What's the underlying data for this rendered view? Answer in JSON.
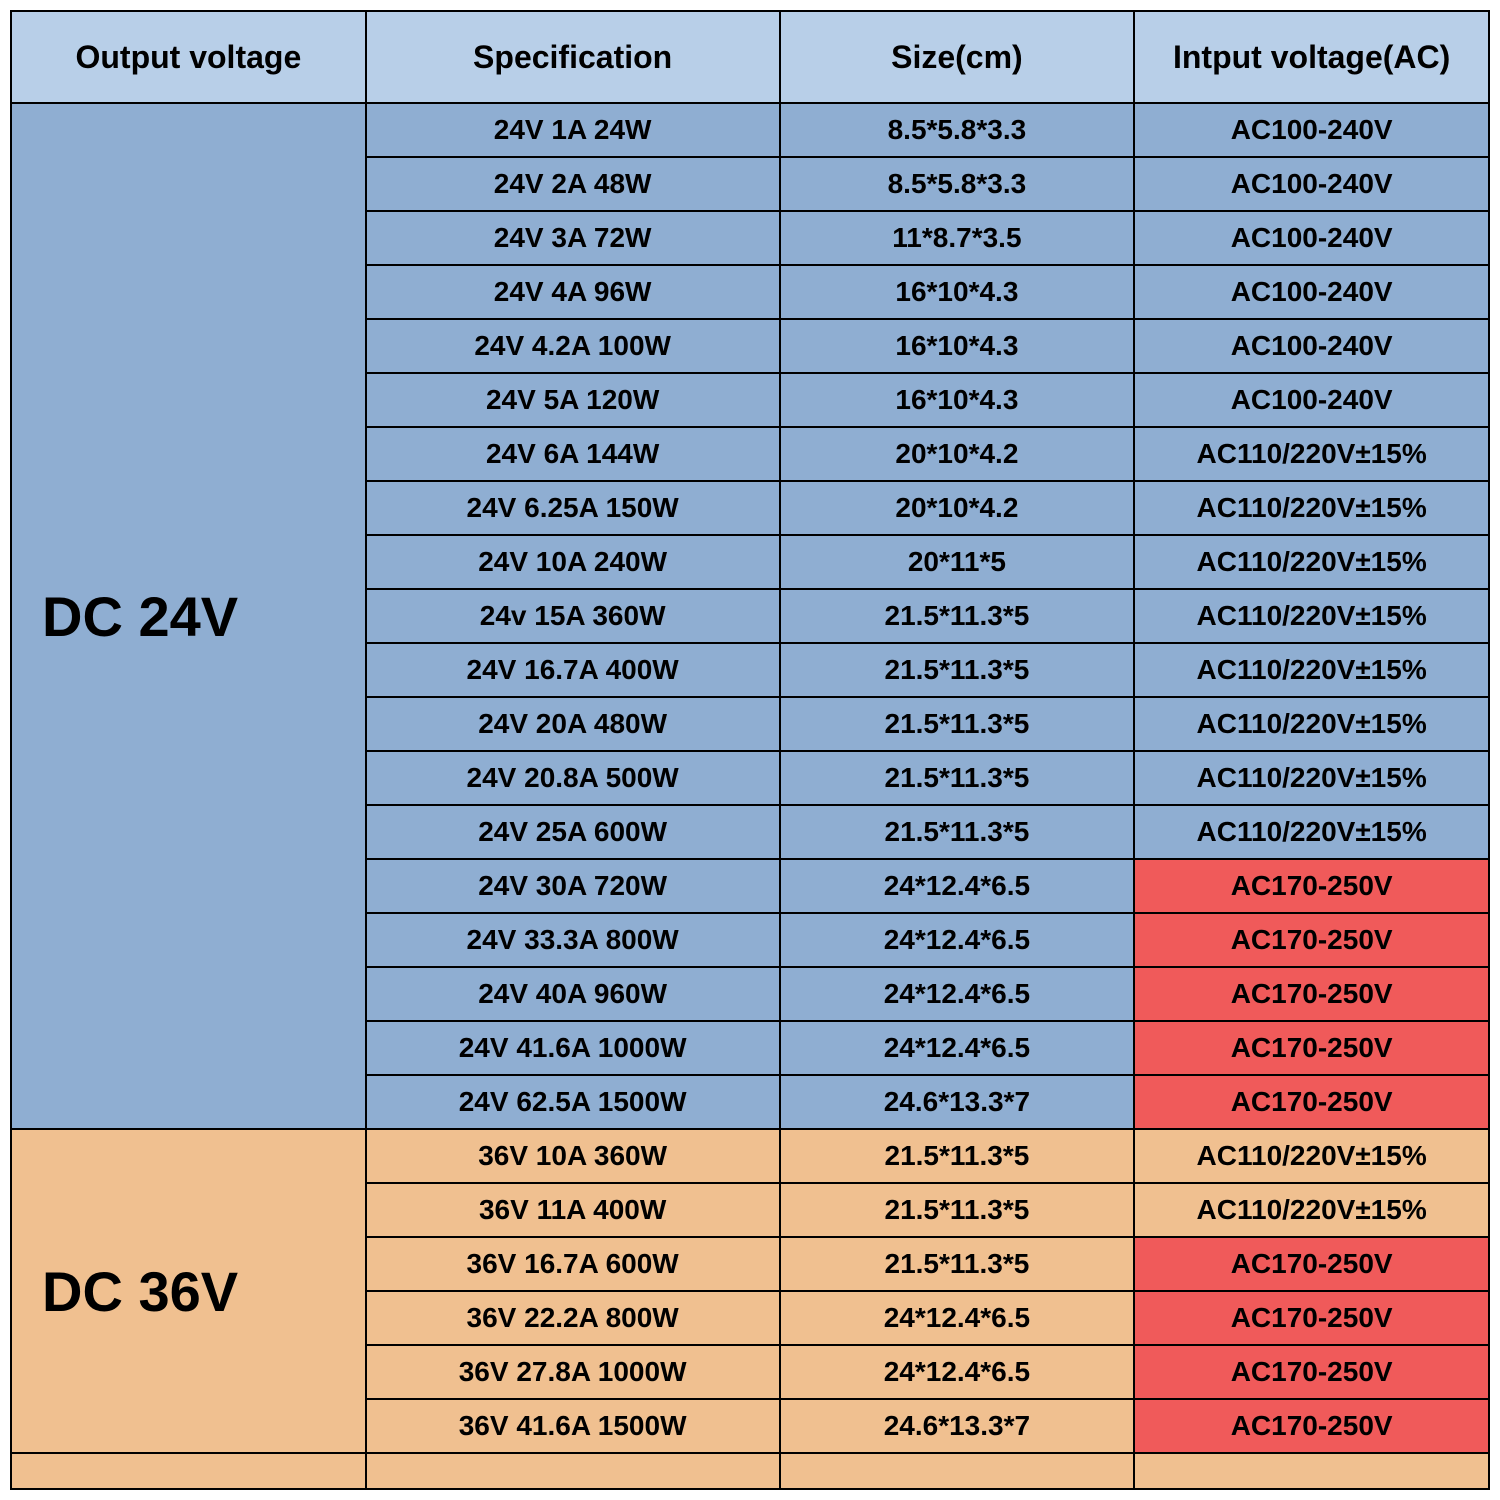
{
  "columns": [
    "Output voltage",
    "Specification",
    "Size(cm)",
    "Intput voltage(AC)"
  ],
  "column_widths_pct": [
    24,
    28,
    24,
    24
  ],
  "header_bg": "#b8cfe8",
  "border_color": "#000000",
  "header_fontsize": 32,
  "body_fontsize": 28,
  "group_fontsize": 56,
  "groups": [
    {
      "label": "DC 24V",
      "group_bg": "#8faed2",
      "rows": [
        {
          "spec": "24V 1A 24W",
          "size": "8.5*5.8*3.3",
          "input": "AC100-240V",
          "input_bg": "#8faed2"
        },
        {
          "spec": "24V 2A 48W",
          "size": "8.5*5.8*3.3",
          "input": "AC100-240V",
          "input_bg": "#8faed2"
        },
        {
          "spec": "24V 3A 72W",
          "size": "11*8.7*3.5",
          "input": "AC100-240V",
          "input_bg": "#8faed2"
        },
        {
          "spec": "24V 4A 96W",
          "size": "16*10*4.3",
          "input": "AC100-240V",
          "input_bg": "#8faed2"
        },
        {
          "spec": "24V 4.2A 100W",
          "size": "16*10*4.3",
          "input": "AC100-240V",
          "input_bg": "#8faed2"
        },
        {
          "spec": "24V 5A 120W",
          "size": "16*10*4.3",
          "input": "AC100-240V",
          "input_bg": "#8faed2"
        },
        {
          "spec": "24V 6A 144W",
          "size": "20*10*4.2",
          "input": "AC110/220V±15%",
          "input_bg": "#8faed2"
        },
        {
          "spec": "24V 6.25A 150W",
          "size": "20*10*4.2",
          "input": "AC110/220V±15%",
          "input_bg": "#8faed2"
        },
        {
          "spec": "24V 10A 240W",
          "size": "20*11*5",
          "input": "AC110/220V±15%",
          "input_bg": "#8faed2"
        },
        {
          "spec": "24v 15A 360W",
          "size": "21.5*11.3*5",
          "input": "AC110/220V±15%",
          "input_bg": "#8faed2"
        },
        {
          "spec": "24V 16.7A 400W",
          "size": "21.5*11.3*5",
          "input": "AC110/220V±15%",
          "input_bg": "#8faed2"
        },
        {
          "spec": "24V 20A 480W",
          "size": "21.5*11.3*5",
          "input": "AC110/220V±15%",
          "input_bg": "#8faed2"
        },
        {
          "spec": "24V 20.8A 500W",
          "size": "21.5*11.3*5",
          "input": "AC110/220V±15%",
          "input_bg": "#8faed2"
        },
        {
          "spec": "24V 25A 600W",
          "size": "21.5*11.3*5",
          "input": "AC110/220V±15%",
          "input_bg": "#8faed2"
        },
        {
          "spec": "24V 30A 720W",
          "size": "24*12.4*6.5",
          "input": "AC170-250V",
          "input_bg": "#f05a5a"
        },
        {
          "spec": "24V 33.3A 800W",
          "size": "24*12.4*6.5",
          "input": "AC170-250V",
          "input_bg": "#f05a5a"
        },
        {
          "spec": "24V 40A 960W",
          "size": "24*12.4*6.5",
          "input": "AC170-250V",
          "input_bg": "#f05a5a"
        },
        {
          "spec": "24V 41.6A 1000W",
          "size": "24*12.4*6.5",
          "input": "AC170-250V",
          "input_bg": "#f05a5a"
        },
        {
          "spec": "24V 62.5A 1500W",
          "size": "24.6*13.3*7",
          "input": "AC170-250V",
          "input_bg": "#f05a5a"
        }
      ]
    },
    {
      "label": "DC 36V",
      "group_bg": "#f0c090",
      "rows": [
        {
          "spec": "36V 10A 360W",
          "size": "21.5*11.3*5",
          "input": "AC110/220V±15%",
          "input_bg": "#f0c090"
        },
        {
          "spec": "36V 11A 400W",
          "size": "21.5*11.3*5",
          "input": "AC110/220V±15%",
          "input_bg": "#f0c090"
        },
        {
          "spec": "36V 16.7A 600W",
          "size": "21.5*11.3*5",
          "input": "AC170-250V",
          "input_bg": "#f05a5a"
        },
        {
          "spec": "36V 22.2A 800W",
          "size": "24*12.4*6.5",
          "input": "AC170-250V",
          "input_bg": "#f05a5a"
        },
        {
          "spec": "36V 27.8A 1000W",
          "size": "24*12.4*6.5",
          "input": "AC170-250V",
          "input_bg": "#f05a5a"
        },
        {
          "spec": "36V 41.6A 1500W",
          "size": "24.6*13.3*7",
          "input": "AC170-250V",
          "input_bg": "#f05a5a"
        }
      ]
    }
  ],
  "footer_row_bg": "#f0c090"
}
